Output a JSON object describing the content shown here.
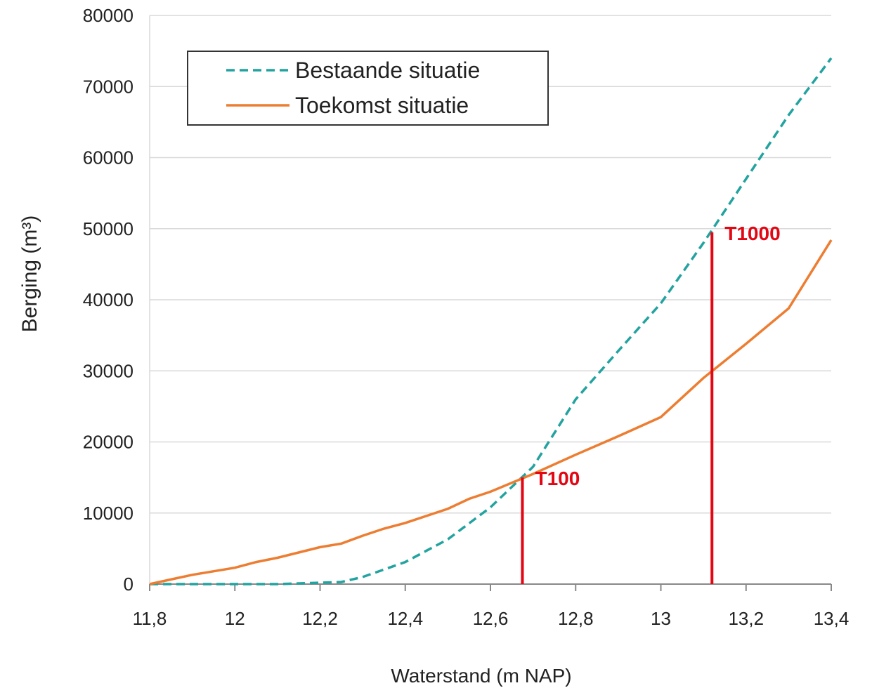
{
  "chart_data": {
    "type": "line",
    "xlabel": "Waterstand (m NAP)",
    "ylabel": "Berging (m³)",
    "xlim": [
      11.8,
      13.4
    ],
    "ylim": [
      0,
      80000
    ],
    "xticks": [
      {
        "value": 11.8,
        "label": "11,8"
      },
      12,
      {
        "value": 12.2,
        "label": "12,2"
      },
      {
        "value": 12.4,
        "label": "12,4"
      },
      {
        "value": 12.6,
        "label": "12,6"
      },
      {
        "value": 12.8,
        "label": "12,8"
      },
      13,
      {
        "value": 13.2,
        "label": "13,2"
      },
      {
        "value": 13.4,
        "label": "13,4"
      }
    ],
    "yticks": [
      0,
      10000,
      20000,
      30000,
      40000,
      50000,
      60000,
      70000,
      80000
    ],
    "grid": true,
    "legend": "upper left",
    "series": [
      {
        "name": "Bestaande situatie",
        "color": "#22a39f",
        "style": "dashed",
        "x": [
          11.8,
          11.9,
          12.0,
          12.1,
          12.2,
          12.25,
          12.3,
          12.4,
          12.5,
          12.6,
          12.7,
          12.8,
          12.9,
          13.0,
          13.1,
          13.2,
          13.3,
          13.4
        ],
        "values": [
          0,
          0,
          0,
          0,
          200,
          300,
          1000,
          3100,
          6300,
          10800,
          16500,
          26000,
          32800,
          39500,
          48000,
          57000,
          66000,
          74000
        ]
      },
      {
        "name": "Toekomst situatie",
        "color": "#ed7d31",
        "style": "solid",
        "x": [
          11.8,
          11.9,
          12.0,
          12.05,
          12.1,
          12.2,
          12.25,
          12.3,
          12.35,
          12.4,
          12.5,
          12.55,
          12.6,
          12.7,
          12.8,
          12.9,
          13.0,
          13.1,
          13.2,
          13.3,
          13.4
        ],
        "values": [
          0,
          1300,
          2300,
          3100,
          3700,
          5200,
          5700,
          6800,
          7800,
          8600,
          10600,
          12000,
          13000,
          15500,
          18200,
          20800,
          23500,
          29000,
          33800,
          38800,
          48400
        ]
      }
    ],
    "annotations": [
      {
        "text": "T100",
        "x": 12.675,
        "y": 15000,
        "color": "#e30613"
      },
      {
        "text": "T1000",
        "x": 13.12,
        "y": 49500,
        "color": "#e30613"
      }
    ]
  }
}
